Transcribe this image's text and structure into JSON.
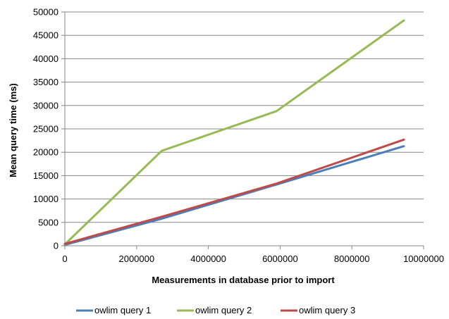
{
  "chart_data": {
    "type": "line",
    "title": "",
    "xlabel": "Measurements in database  prior to import",
    "ylabel": "Mean query time (ms)",
    "xlim": [
      0,
      10000000
    ],
    "ylim": [
      0,
      50000
    ],
    "x_ticks": [
      0,
      2000000,
      4000000,
      6000000,
      8000000,
      10000000
    ],
    "x_tick_labels": [
      "0",
      "2000000",
      "4000000",
      "6000000",
      "8000000",
      "10000000"
    ],
    "y_ticks": [
      0,
      5000,
      10000,
      15000,
      20000,
      25000,
      30000,
      35000,
      40000,
      45000,
      50000
    ],
    "y_tick_labels": [
      "0",
      "5000",
      "10000",
      "15000",
      "20000",
      "25000",
      "30000",
      "35000",
      "40000",
      "45000",
      "50000"
    ],
    "grid": "horizontal",
    "legend_position": "bottom",
    "series": [
      {
        "name": "owlim query 1",
        "color": "#4a7ebb",
        "x": [
          0,
          2700000,
          5900000,
          9450000
        ],
        "y": [
          200,
          5800,
          13100,
          21300
        ]
      },
      {
        "name": "owlim query 2",
        "color": "#98b954",
        "x": [
          0,
          2700000,
          5900000,
          9450000
        ],
        "y": [
          300,
          20300,
          28800,
          48200
        ]
      },
      {
        "name": "owlim query 3",
        "color": "#be4b48",
        "x": [
          0,
          2700000,
          5900000,
          9450000
        ],
        "y": [
          400,
          6200,
          13300,
          22700
        ]
      }
    ]
  }
}
